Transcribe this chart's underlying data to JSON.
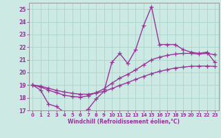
{
  "title": "",
  "xlabel": "Windchill (Refroidissement éolien,°C)",
  "xlim": [
    -0.5,
    23.5
  ],
  "ylim": [
    17,
    25.5
  ],
  "yticks": [
    17,
    18,
    19,
    20,
    21,
    22,
    23,
    24,
    25
  ],
  "xticks": [
    0,
    1,
    2,
    3,
    4,
    5,
    6,
    7,
    8,
    9,
    10,
    11,
    12,
    13,
    14,
    15,
    16,
    17,
    18,
    19,
    20,
    21,
    22,
    23
  ],
  "bg_color": "#cce9e4",
  "grid_color": "#aad4cc",
  "line_color": "#993399",
  "line_width": 1.0,
  "marker": "+",
  "marker_size": 4,
  "marker_edge_width": 0.9,
  "series": [
    [
      19.0,
      18.6,
      17.5,
      17.3,
      16.85,
      16.7,
      16.7,
      17.1,
      17.9,
      18.5,
      20.8,
      21.5,
      20.7,
      21.8,
      23.7,
      25.2,
      22.2,
      22.2,
      22.2,
      21.8,
      21.6,
      21.5,
      21.6,
      20.8
    ],
    [
      19.0,
      18.85,
      18.6,
      18.4,
      18.2,
      18.1,
      18.05,
      18.15,
      18.4,
      18.7,
      19.15,
      19.55,
      19.85,
      20.2,
      20.6,
      21.0,
      21.2,
      21.35,
      21.45,
      21.5,
      21.5,
      21.45,
      21.5,
      21.4
    ],
    [
      19.0,
      18.92,
      18.75,
      18.58,
      18.45,
      18.35,
      18.28,
      18.28,
      18.38,
      18.5,
      18.72,
      18.98,
      19.2,
      19.45,
      19.68,
      19.9,
      20.08,
      20.22,
      20.35,
      20.42,
      20.48,
      20.5,
      20.5,
      20.48
    ]
  ]
}
